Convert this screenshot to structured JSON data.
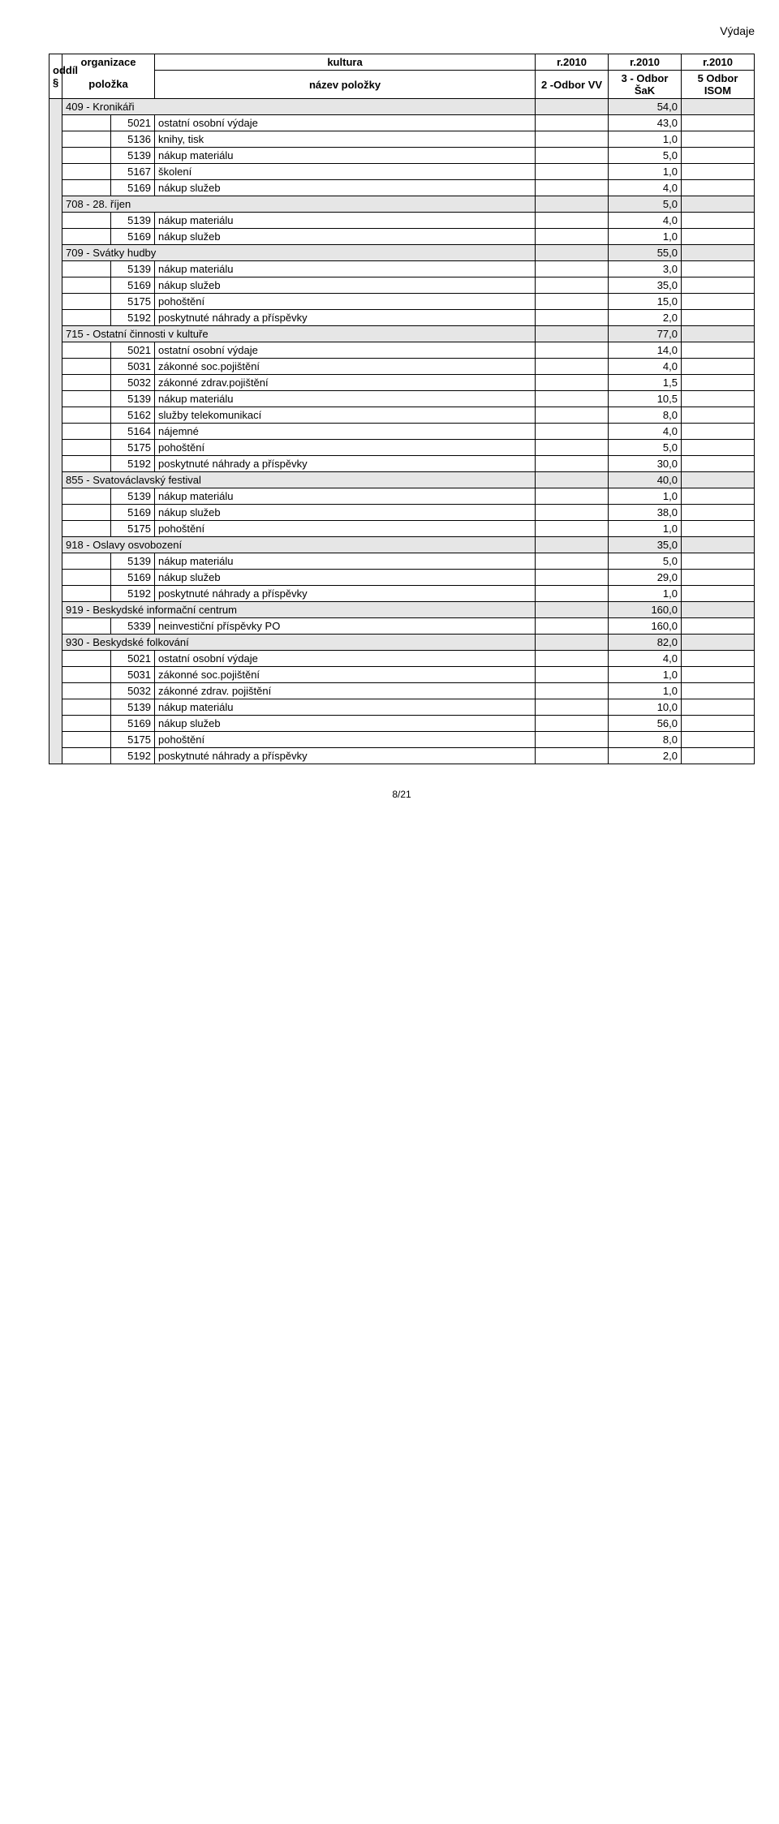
{
  "page_title": "Výdaje",
  "footer": "8/21",
  "header": {
    "oddil": "oddíl §",
    "organizace": "organizace",
    "polozka": "položka",
    "kultura": "kultura",
    "nazev": "název položky",
    "r2010_a": "r.2010",
    "r2010_b": "r.2010",
    "r2010_c": "r.2010",
    "col1": "2 -Odbor VV",
    "col2": "3 - Odbor ŠaK",
    "col3": "5 Odbor ISOM"
  },
  "colors": {
    "section_bg": "#e6e6e6",
    "border": "#000000",
    "page_bg": "#ffffff",
    "text": "#000000"
  },
  "rows": [
    {
      "type": "section",
      "label": "409 - Kronikáři",
      "v2": "54,0"
    },
    {
      "type": "item",
      "code": "5021",
      "name": "ostatní osobní výdaje",
      "v2": "43,0"
    },
    {
      "type": "item",
      "code": "5136",
      "name": "knihy, tisk",
      "v2": "1,0"
    },
    {
      "type": "item",
      "code": "5139",
      "name": "nákup materiálu",
      "v2": "5,0"
    },
    {
      "type": "item",
      "code": "5167",
      "name": "školení",
      "v2": "1,0"
    },
    {
      "type": "item",
      "code": "5169",
      "name": "nákup služeb",
      "v2": "4,0"
    },
    {
      "type": "section",
      "label": "708 - 28. říjen",
      "v2": "5,0"
    },
    {
      "type": "item",
      "code": "5139",
      "name": "nákup materiálu",
      "v2": "4,0"
    },
    {
      "type": "item",
      "code": "5169",
      "name": "nákup služeb",
      "v2": "1,0"
    },
    {
      "type": "section",
      "label": "709 - Svátky hudby",
      "v2": "55,0"
    },
    {
      "type": "item",
      "code": "5139",
      "name": "nákup materiálu",
      "v2": "3,0"
    },
    {
      "type": "item",
      "code": "5169",
      "name": "nákup služeb",
      "v2": "35,0"
    },
    {
      "type": "item",
      "code": "5175",
      "name": "pohoštění",
      "v2": "15,0"
    },
    {
      "type": "item",
      "code": "5192",
      "name": "poskytnuté náhrady a příspěvky",
      "v2": "2,0"
    },
    {
      "type": "section",
      "label": "715 - Ostatní činnosti v kultuře",
      "v2": "77,0"
    },
    {
      "type": "item",
      "code": "5021",
      "name": "ostatní osobní výdaje",
      "v2": "14,0"
    },
    {
      "type": "item",
      "code": "5031",
      "name": "zákonné soc.pojištění",
      "v2": "4,0"
    },
    {
      "type": "item",
      "code": "5032",
      "name": "zákonné zdrav.pojištění",
      "v2": "1,5"
    },
    {
      "type": "item",
      "code": "5139",
      "name": "nákup materiálu",
      "v2": "10,5"
    },
    {
      "type": "item",
      "code": "5162",
      "name": "služby telekomunikací",
      "v2": "8,0"
    },
    {
      "type": "item",
      "code": "5164",
      "name": "nájemné",
      "v2": "4,0"
    },
    {
      "type": "item",
      "code": "5175",
      "name": "pohoštění",
      "v2": "5,0"
    },
    {
      "type": "item",
      "code": "5192",
      "name": "poskytnuté náhrady a příspěvky",
      "v2": "30,0"
    },
    {
      "type": "section",
      "label": "855 - Svatováclavský festival",
      "v2": "40,0"
    },
    {
      "type": "item",
      "code": "5139",
      "name": "nákup materiálu",
      "v2": "1,0"
    },
    {
      "type": "item",
      "code": "5169",
      "name": "nákup služeb",
      "v2": "38,0"
    },
    {
      "type": "item",
      "code": "5175",
      "name": "pohoštění",
      "v2": "1,0"
    },
    {
      "type": "section",
      "label": "918 -  Oslavy osvobození",
      "v2": "35,0"
    },
    {
      "type": "item",
      "code": "5139",
      "name": "nákup materiálu",
      "v2": "5,0"
    },
    {
      "type": "item",
      "code": "5169",
      "name": "nákup služeb",
      "v2": "29,0"
    },
    {
      "type": "item",
      "code": "5192",
      "name": "poskytnuté náhrady a příspěvky",
      "v2": "1,0"
    },
    {
      "type": "section",
      "label": "919 - Beskydské informační centrum",
      "v2": "160,0"
    },
    {
      "type": "item",
      "code": "5339",
      "name": "neinvestiční příspěvky PO",
      "v2": "160,0"
    },
    {
      "type": "section",
      "label": "930 -  Beskydské folkování",
      "v2": "82,0"
    },
    {
      "type": "item",
      "code": "5021",
      "name": "ostatní osobní výdaje",
      "v2": "4,0"
    },
    {
      "type": "item",
      "code": "5031",
      "name": "zákonné soc.pojištění",
      "v2": "1,0"
    },
    {
      "type": "item",
      "code": "5032",
      "name": "zákonné zdrav. pojištění",
      "v2": "1,0"
    },
    {
      "type": "item",
      "code": "5139",
      "name": "nákup materiálu",
      "v2": "10,0"
    },
    {
      "type": "item",
      "code": "5169",
      "name": "nákup služeb",
      "v2": "56,0"
    },
    {
      "type": "item",
      "code": "5175",
      "name": "pohoštění",
      "v2": "8,0"
    },
    {
      "type": "item",
      "code": "5192",
      "name": "poskytnuté náhrady a příspěvky",
      "v2": "2,0"
    }
  ]
}
